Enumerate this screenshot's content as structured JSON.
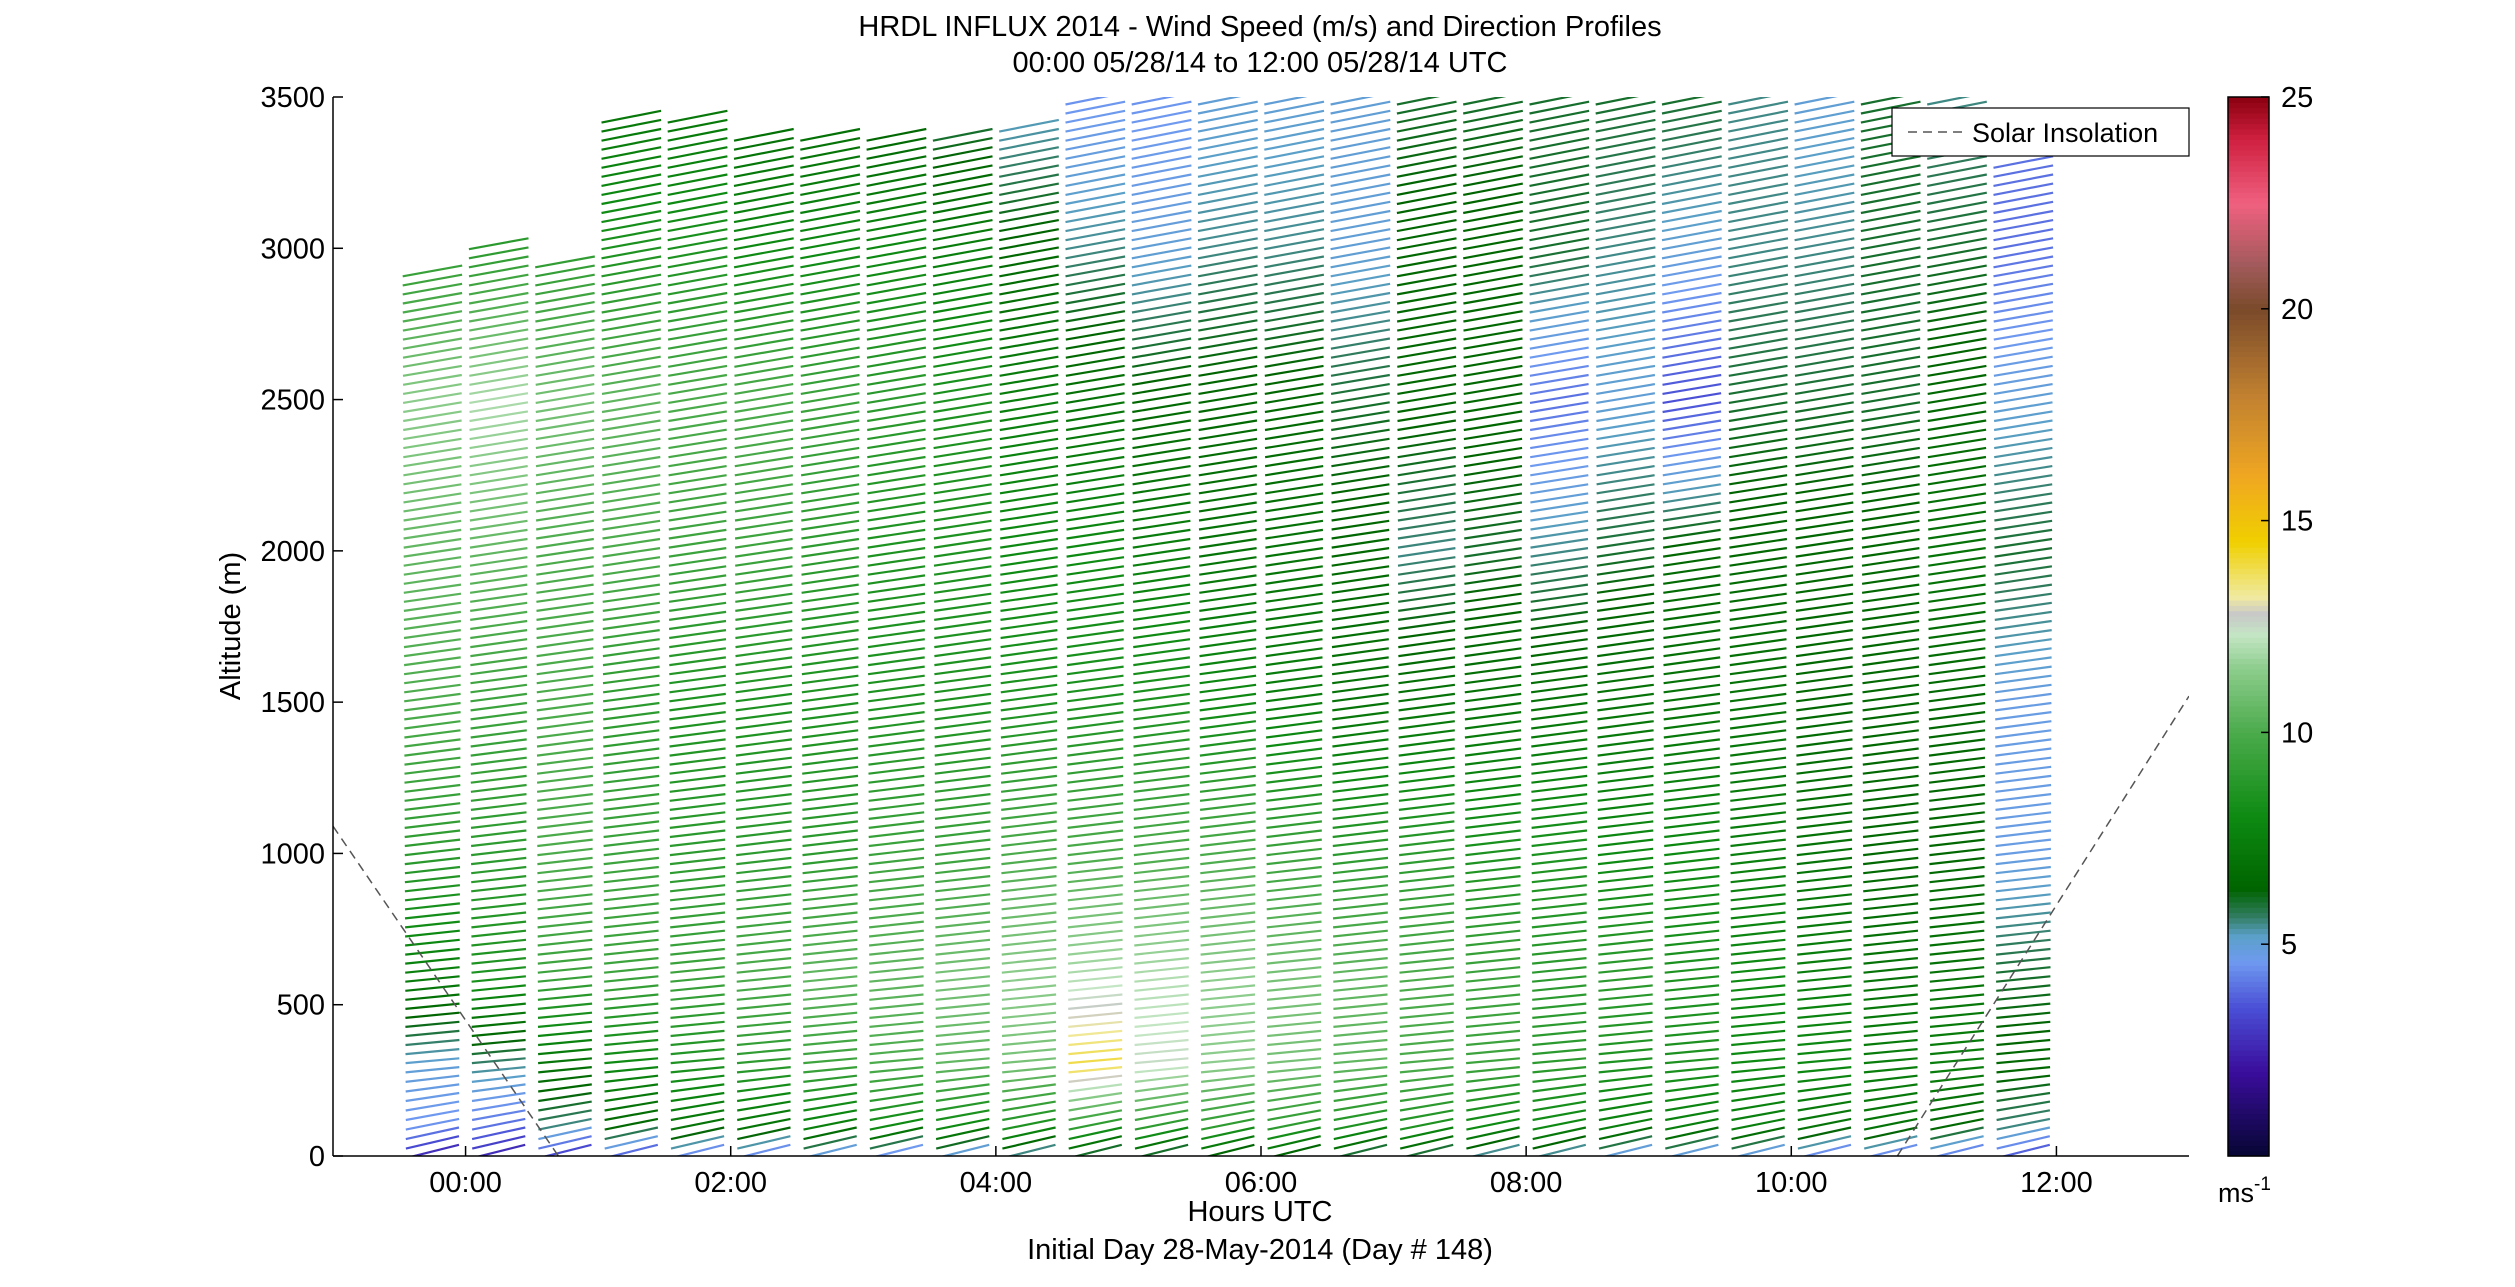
{
  "chart_data": {
    "type": "wind-profile",
    "title": "HRDL INFLUX 2014 - Wind Speed (m/s) and Direction Profiles",
    "subtitle": "00:00 05/28/14 to 12:00 05/28/14  UTC",
    "xlabel": "Hours UTC",
    "xlabel2": "Initial Day 28-May-2014 (Day # 148)",
    "ylabel": "Altitude (m)",
    "xlim": [
      -1.0,
      13.0
    ],
    "ylim": [
      0,
      3500
    ],
    "x_ticks": [
      0,
      2,
      4,
      6,
      8,
      10,
      12
    ],
    "x_tick_labels": [
      "00:00",
      "02:00",
      "04:00",
      "06:00",
      "08:00",
      "10:00",
      "12:00"
    ],
    "y_ticks": [
      0,
      500,
      1000,
      1500,
      2000,
      2500,
      3000,
      3500
    ],
    "y_tick_labels": [
      "0",
      "500",
      "1000",
      "1500",
      "2000",
      "2500",
      "3000",
      "3500"
    ],
    "legend": {
      "placement": "top-right",
      "entries": [
        {
          "label": "Solar Insolation",
          "style": "dashed",
          "color": "#555555"
        }
      ]
    },
    "colorbar": {
      "unit_label": "ms",
      "unit_exponent": "-1",
      "range": [
        0,
        25
      ],
      "tick_values": [
        5,
        10,
        15,
        20,
        25
      ],
      "tick_labels": [
        "5",
        "10",
        "15",
        "20",
        "25"
      ],
      "stops": [
        {
          "v": 0.0,
          "color": "#060633"
        },
        {
          "v": 2.0,
          "color": "#3a0d9c"
        },
        {
          "v": 3.5,
          "color": "#4a4fd6"
        },
        {
          "v": 4.6,
          "color": "#6f9af0"
        },
        {
          "v": 5.2,
          "color": "#5aa0c8"
        },
        {
          "v": 5.7,
          "color": "#2e7a5a"
        },
        {
          "v": 6.3,
          "color": "#006400"
        },
        {
          "v": 8.0,
          "color": "#0d8a12"
        },
        {
          "v": 10.0,
          "color": "#4bab4b"
        },
        {
          "v": 11.5,
          "color": "#8ccc8c"
        },
        {
          "v": 12.3,
          "color": "#c4e6c4"
        },
        {
          "v": 12.8,
          "color": "#c8c8c8"
        },
        {
          "v": 13.2,
          "color": "#f0eaa0"
        },
        {
          "v": 14.5,
          "color": "#f0d000"
        },
        {
          "v": 16.0,
          "color": "#f0a820"
        },
        {
          "v": 18.0,
          "color": "#c08030"
        },
        {
          "v": 20.0,
          "color": "#7a4a2a"
        },
        {
          "v": 21.0,
          "color": "#a05a5a"
        },
        {
          "v": 22.5,
          "color": "#f06080"
        },
        {
          "v": 24.0,
          "color": "#d02040"
        },
        {
          "v": 25.0,
          "color": "#8a0010"
        }
      ]
    },
    "profile_times_hours": [
      -0.25,
      0.25,
      0.75,
      1.25,
      1.75,
      2.25,
      2.75,
      3.25,
      3.75,
      4.25,
      4.75,
      5.25,
      5.75,
      6.25,
      6.75,
      7.25,
      7.75,
      8.25,
      8.75,
      9.25,
      9.75,
      10.25,
      10.75,
      11.25,
      11.75
    ],
    "profile_top_altitudes_m": [
      2940,
      3020,
      2980,
      3440,
      3440,
      3400,
      3390,
      3400,
      3400,
      3420,
      3500,
      3500,
      3500,
      3500,
      3500,
      3500,
      3500,
      3500,
      3500,
      3500,
      3500,
      3500,
      3500,
      3500,
      3300
    ],
    "speed_profile_nodes_m": [
      0,
      100,
      300,
      600,
      1000,
      1500,
      2000,
      2500,
      3000,
      3500
    ],
    "speed_profiles_ms": [
      [
        2.5,
        4.5,
        5.0,
        7.5,
        9.0,
        10.0,
        10.5,
        11.5,
        9.0,
        8.0
      ],
      [
        2.5,
        4.0,
        5.5,
        8.5,
        9.0,
        9.5,
        10.5,
        12.0,
        9.0,
        8.0
      ],
      [
        3.0,
        5.5,
        7.0,
        9.5,
        10.0,
        10.0,
        10.0,
        11.0,
        9.0,
        8.0
      ],
      [
        3.5,
        6.5,
        8.0,
        9.5,
        9.5,
        9.0,
        10.0,
        10.5,
        8.5,
        7.0
      ],
      [
        4.0,
        7.0,
        8.5,
        9.5,
        9.0,
        8.5,
        9.5,
        10.0,
        8.5,
        7.0
      ],
      [
        4.0,
        7.0,
        9.0,
        10.0,
        9.0,
        8.5,
        9.5,
        10.0,
        8.0,
        6.5
      ],
      [
        4.5,
        7.5,
        9.5,
        10.5,
        9.0,
        8.5,
        9.0,
        9.5,
        8.0,
        6.5
      ],
      [
        4.0,
        8.0,
        10.0,
        10.5,
        9.5,
        8.5,
        8.5,
        9.0,
        8.0,
        6.0
      ],
      [
        4.5,
        8.0,
        10.5,
        11.0,
        9.5,
        8.5,
        8.5,
        8.5,
        7.5,
        5.5
      ],
      [
        5.0,
        8.5,
        11.0,
        11.5,
        10.0,
        8.5,
        8.0,
        7.5,
        6.5,
        5.0
      ],
      [
        5.5,
        9.0,
        14.0,
        12.0,
        10.0,
        8.5,
        8.0,
        7.0,
        5.5,
        4.5
      ],
      [
        5.5,
        9.0,
        12.5,
        12.0,
        10.0,
        8.5,
        7.5,
        6.5,
        5.0,
        4.5
      ],
      [
        6.0,
        9.0,
        11.5,
        11.5,
        10.0,
        8.0,
        7.0,
        6.5,
        5.5,
        5.0
      ],
      [
        6.0,
        9.0,
        11.0,
        11.0,
        9.5,
        7.5,
        7.0,
        6.5,
        5.5,
        5.0
      ],
      [
        5.5,
        8.5,
        10.5,
        10.5,
        9.0,
        7.0,
        6.5,
        6.0,
        5.0,
        5.0
      ],
      [
        5.5,
        8.5,
        10.0,
        10.0,
        9.0,
        7.0,
        5.5,
        6.5,
        6.5,
        6.0
      ],
      [
        5.0,
        8.0,
        9.5,
        9.5,
        8.5,
        7.0,
        6.0,
        6.5,
        6.5,
        6.0
      ],
      [
        5.0,
        8.0,
        9.0,
        9.0,
        8.5,
        7.0,
        5.5,
        4.0,
        6.0,
        6.0
      ],
      [
        4.5,
        7.5,
        8.5,
        9.0,
        8.0,
        7.0,
        6.0,
        5.0,
        5.5,
        6.0
      ],
      [
        4.5,
        7.5,
        8.5,
        8.5,
        8.0,
        7.0,
        6.5,
        3.5,
        5.0,
        6.0
      ],
      [
        4.5,
        7.5,
        8.0,
        8.0,
        7.5,
        7.0,
        6.5,
        6.0,
        5.5,
        5.5
      ],
      [
        4.0,
        7.0,
        8.0,
        7.5,
        7.0,
        6.5,
        6.5,
        6.0,
        5.5,
        5.0
      ],
      [
        4.0,
        7.0,
        7.5,
        7.0,
        6.5,
        6.5,
        6.5,
        6.0,
        6.0,
        6.0
      ],
      [
        4.0,
        6.5,
        7.5,
        7.0,
        6.5,
        6.5,
        7.0,
        6.5,
        6.0,
        5.5
      ],
      [
        3.5,
        5.5,
        6.5,
        6.0,
        4.8,
        4.8,
        6.0,
        5.0,
        4.0,
        4.0
      ]
    ],
    "solar_insolation_curve": [
      {
        "x": -1.0,
        "y": 1090
      },
      {
        "x": 0.7,
        "y": 0
      },
      {
        "x": 10.8,
        "y": 0
      },
      {
        "x": 13.0,
        "y": 1520
      }
    ]
  }
}
